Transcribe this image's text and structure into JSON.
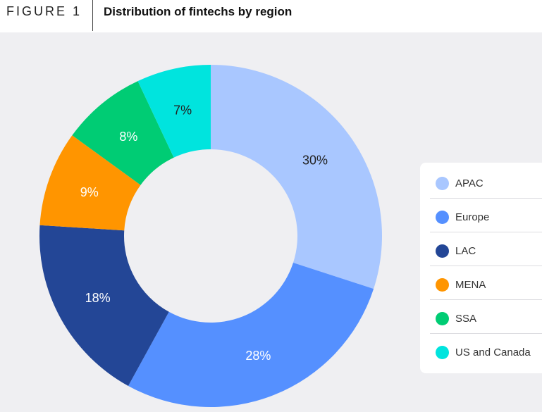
{
  "header": {
    "figure_label": "FIGURE 1",
    "title": "Distribution of fintechs by region"
  },
  "chart_data": {
    "type": "pie",
    "variant": "donut",
    "title": "Distribution of fintechs by region",
    "legend_position": "right",
    "slices": [
      {
        "label": "APAC",
        "value": 30,
        "display": "30%",
        "color": "#a9c7ff",
        "label_color": "#222222"
      },
      {
        "label": "Europe",
        "value": 28,
        "display": "28%",
        "color": "#5590ff",
        "label_color": "#ffffff"
      },
      {
        "label": "LAC",
        "value": 18,
        "display": "18%",
        "color": "#234696",
        "label_color": "#ffffff"
      },
      {
        "label": "MENA",
        "value": 9,
        "display": "9%",
        "color": "#ff9500",
        "label_color": "#ffffff"
      },
      {
        "label": "SSA",
        "value": 8,
        "display": "8%",
        "color": "#00cc74",
        "label_color": "#ffffff"
      },
      {
        "label": "US and Canada",
        "value": 7,
        "display": "7%",
        "color": "#00e4de",
        "label_color": "#222222"
      }
    ]
  }
}
